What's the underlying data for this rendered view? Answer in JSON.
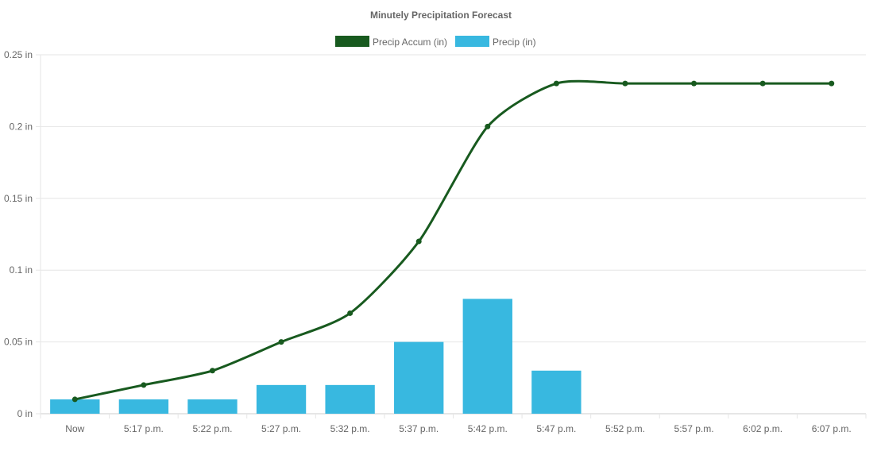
{
  "chart_data": {
    "type": "bar",
    "title": "Minutely Precipitation Forecast",
    "categories": [
      "Now",
      "5:17 p.m.",
      "5:22 p.m.",
      "5:27 p.m.",
      "5:32 p.m.",
      "5:37 p.m.",
      "5:42 p.m.",
      "5:47 p.m.",
      "5:52 p.m.",
      "5:57 p.m.",
      "6:02 p.m.",
      "6:07 p.m."
    ],
    "series": [
      {
        "name": "Precip Accum (in)",
        "type": "line",
        "color": "#185a1f",
        "values": [
          0.01,
          0.02,
          0.03,
          0.05,
          0.07,
          0.12,
          0.2,
          0.23,
          0.23,
          0.23,
          0.23,
          0.23
        ]
      },
      {
        "name": "Precip (in)",
        "type": "bar",
        "color": "#38b8e0",
        "values": [
          0.01,
          0.01,
          0.01,
          0.02,
          0.02,
          0.05,
          0.08,
          0.03,
          0,
          0,
          0,
          0
        ]
      }
    ],
    "ylim": [
      0,
      0.25
    ],
    "yticks": [
      "0 in",
      "0.05 in",
      "0.1 in",
      "0.15 in",
      "0.2 in",
      "0.25 in"
    ],
    "ytick_values": [
      0,
      0.05,
      0.1,
      0.15,
      0.2,
      0.25
    ],
    "xlabel": "",
    "ylabel": "",
    "grid": true,
    "legend": "top"
  }
}
